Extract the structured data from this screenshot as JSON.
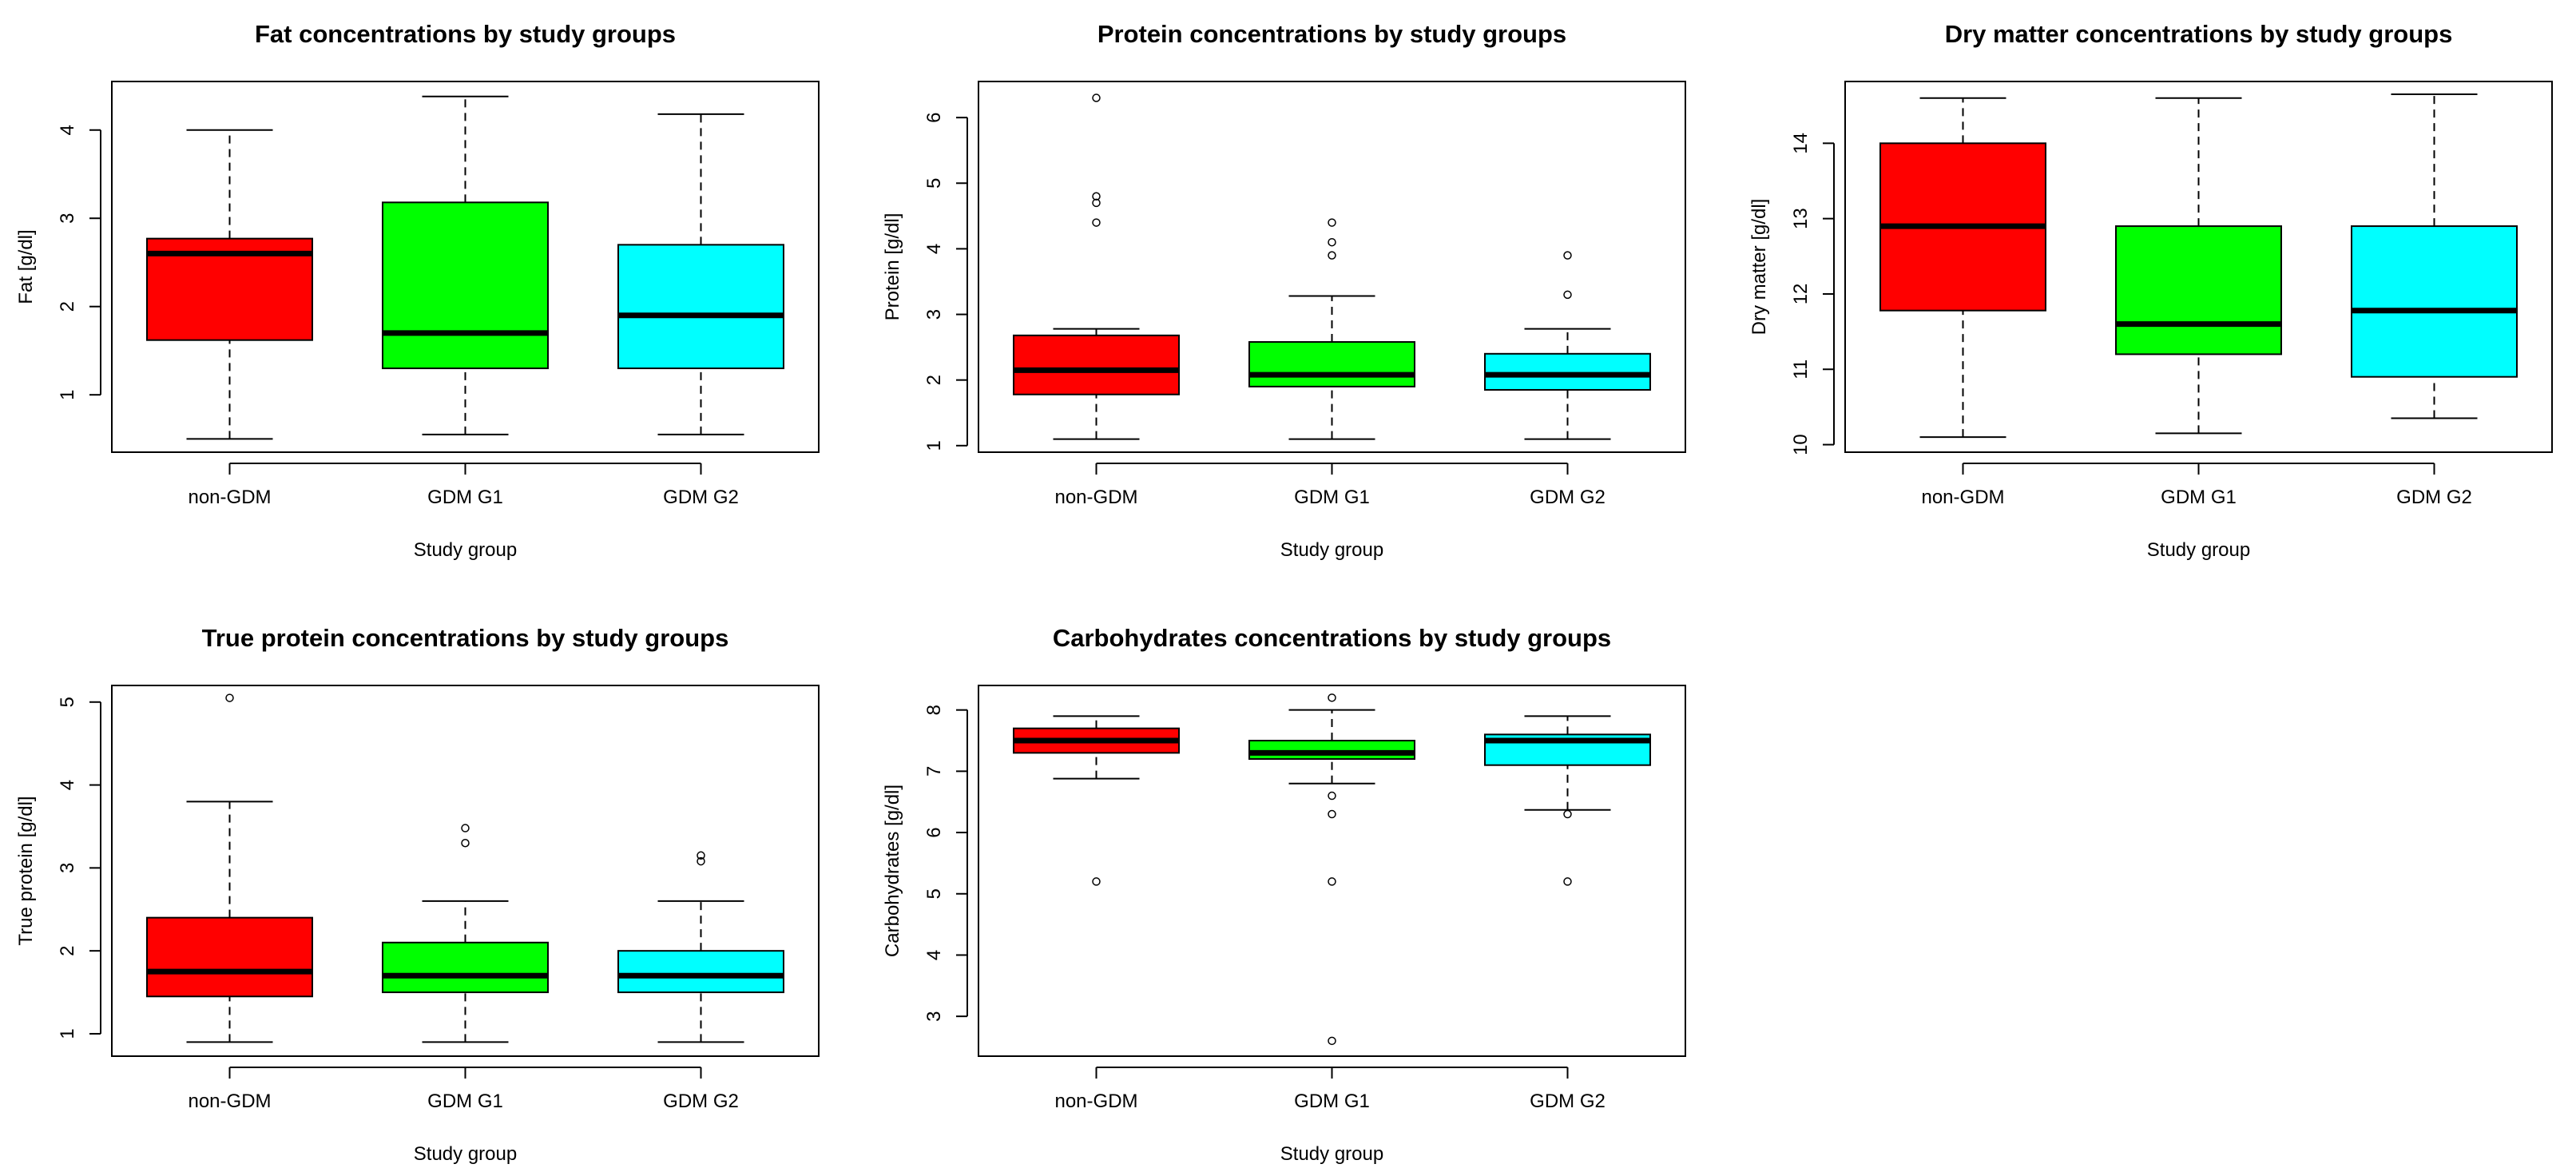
{
  "figure": {
    "background": "#ffffff"
  },
  "chart_data": [
    {
      "type": "boxplot",
      "title": "Fat concentrations by study groups",
      "xlabel": "Study group",
      "ylabel": "Fat [g/dl]",
      "ylim": [
        0.35,
        4.55
      ],
      "yticks": [
        1,
        2,
        3,
        4
      ],
      "ytick_labels": [
        "1",
        "2",
        "3",
        "4"
      ],
      "categories": [
        "non-GDM",
        "GDM G1",
        "GDM G2"
      ],
      "colors": [
        "#ff0000",
        "#00ff00",
        "#00ffff"
      ],
      "boxes": [
        {
          "whisker_low": 0.5,
          "q1": 1.62,
          "median": 2.6,
          "q3": 2.77,
          "whisker_high": 4.0,
          "outliers": []
        },
        {
          "whisker_low": 0.55,
          "q1": 1.3,
          "median": 1.7,
          "q3": 3.18,
          "whisker_high": 4.38,
          "outliers": []
        },
        {
          "whisker_low": 0.55,
          "q1": 1.3,
          "median": 1.9,
          "q3": 2.7,
          "whisker_high": 4.18,
          "outliers": []
        }
      ]
    },
    {
      "type": "boxplot",
      "title": "Protein concentrations by study groups",
      "xlabel": "Study group",
      "ylabel": "Protein [g/dl]",
      "ylim": [
        0.9,
        6.55
      ],
      "yticks": [
        1,
        2,
        3,
        4,
        5,
        6
      ],
      "ytick_labels": [
        "1",
        "2",
        "3",
        "4",
        "5",
        "6"
      ],
      "categories": [
        "non-GDM",
        "GDM G1",
        "GDM G2"
      ],
      "colors": [
        "#ff0000",
        "#00ff00",
        "#00ffff"
      ],
      "boxes": [
        {
          "whisker_low": 1.1,
          "q1": 1.78,
          "median": 2.15,
          "q3": 2.68,
          "whisker_high": 2.78,
          "outliers": [
            4.4,
            4.7,
            4.8,
            6.3
          ]
        },
        {
          "whisker_low": 1.1,
          "q1": 1.9,
          "median": 2.08,
          "q3": 2.58,
          "whisker_high": 3.28,
          "outliers": [
            3.9,
            4.1,
            4.4
          ]
        },
        {
          "whisker_low": 1.1,
          "q1": 1.85,
          "median": 2.08,
          "q3": 2.4,
          "whisker_high": 2.78,
          "outliers": [
            3.3,
            3.9
          ]
        }
      ]
    },
    {
      "type": "boxplot",
      "title": "Dry matter concentrations by study groups",
      "xlabel": "Study group",
      "ylabel": "Dry matter [g/dl]",
      "ylim": [
        9.9,
        14.82
      ],
      "yticks": [
        10,
        11,
        12,
        13,
        14
      ],
      "ytick_labels": [
        "10",
        "11",
        "12",
        "13",
        "14"
      ],
      "categories": [
        "non-GDM",
        "GDM G1",
        "GDM G2"
      ],
      "colors": [
        "#ff0000",
        "#00ff00",
        "#00ffff"
      ],
      "boxes": [
        {
          "whisker_low": 10.1,
          "q1": 11.78,
          "median": 12.9,
          "q3": 14.0,
          "whisker_high": 14.6,
          "outliers": []
        },
        {
          "whisker_low": 10.15,
          "q1": 11.2,
          "median": 11.6,
          "q3": 12.9,
          "whisker_high": 14.6,
          "outliers": []
        },
        {
          "whisker_low": 10.35,
          "q1": 10.9,
          "median": 11.78,
          "q3": 12.9,
          "whisker_high": 14.65,
          "outliers": []
        }
      ]
    },
    {
      "type": "boxplot",
      "title": "True protein concentrations by study groups",
      "xlabel": "Study group",
      "ylabel": "True protein [g/dl]",
      "ylim": [
        0.73,
        5.2
      ],
      "yticks": [
        1,
        2,
        3,
        4,
        5
      ],
      "ytick_labels": [
        "1",
        "2",
        "3",
        "4",
        "5"
      ],
      "categories": [
        "non-GDM",
        "GDM G1",
        "GDM G2"
      ],
      "colors": [
        "#ff0000",
        "#00ff00",
        "#00ffff"
      ],
      "boxes": [
        {
          "whisker_low": 0.9,
          "q1": 1.45,
          "median": 1.75,
          "q3": 2.4,
          "whisker_high": 3.8,
          "outliers": [
            5.05
          ]
        },
        {
          "whisker_low": 0.9,
          "q1": 1.5,
          "median": 1.7,
          "q3": 2.1,
          "whisker_high": 2.6,
          "outliers": [
            3.3,
            3.48
          ]
        },
        {
          "whisker_low": 0.9,
          "q1": 1.5,
          "median": 1.7,
          "q3": 2.0,
          "whisker_high": 2.6,
          "outliers": [
            3.08,
            3.15
          ]
        }
      ]
    },
    {
      "type": "boxplot",
      "title": "Carbohydrates concentrations by study groups",
      "xlabel": "Study group",
      "ylabel": "Carbohydrates [g/dl]",
      "ylim": [
        2.35,
        8.4
      ],
      "yticks": [
        3,
        4,
        5,
        6,
        7,
        8
      ],
      "ytick_labels": [
        "3",
        "4",
        "5",
        "6",
        "7",
        "8"
      ],
      "categories": [
        "non-GDM",
        "GDM G1",
        "GDM G2"
      ],
      "colors": [
        "#ff0000",
        "#00ff00",
        "#00ffff"
      ],
      "boxes": [
        {
          "whisker_low": 6.88,
          "q1": 7.3,
          "median": 7.5,
          "q3": 7.7,
          "whisker_high": 7.9,
          "outliers": [
            5.2
          ]
        },
        {
          "whisker_low": 6.8,
          "q1": 7.2,
          "median": 7.3,
          "q3": 7.5,
          "whisker_high": 8.0,
          "outliers": [
            2.6,
            5.2,
            6.3,
            6.6,
            8.2
          ]
        },
        {
          "whisker_low": 6.37,
          "q1": 7.1,
          "median": 7.5,
          "q3": 7.6,
          "whisker_high": 7.9,
          "outliers": [
            5.2,
            6.3
          ]
        }
      ]
    }
  ]
}
